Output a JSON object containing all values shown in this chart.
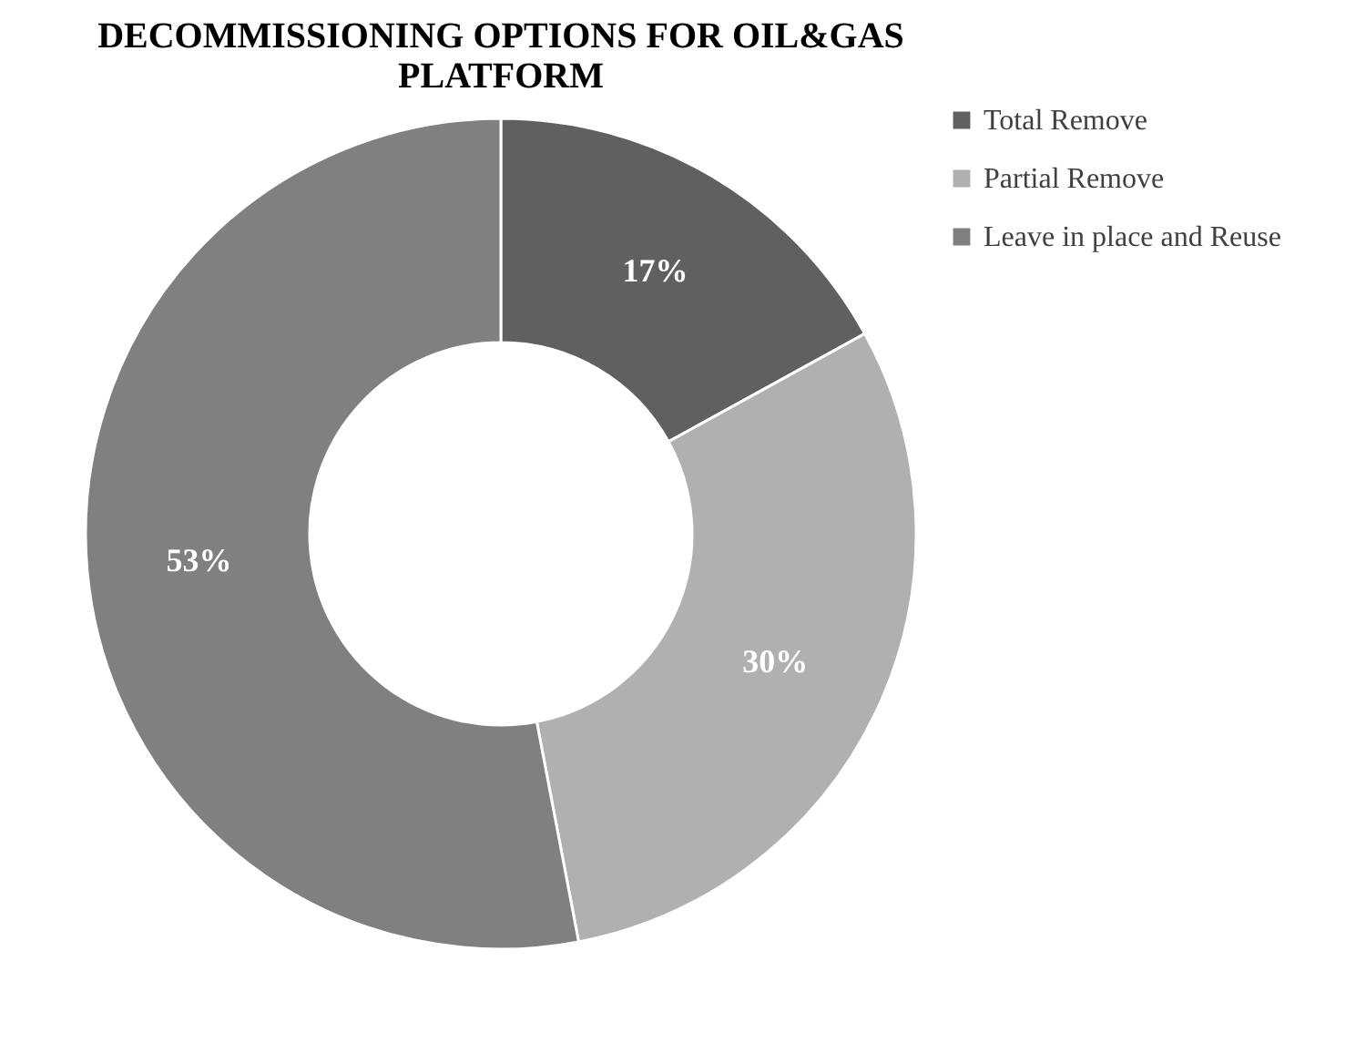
{
  "chart_data": {
    "type": "donut",
    "title": "DECOMMISSIONING OPTIONS FOR OIL&GAS PLATFORM",
    "categories": [
      "Total Remove",
      "Partial Remove",
      "Leave in place and Reuse"
    ],
    "values": [
      17,
      30,
      53
    ],
    "colors": [
      "#606060",
      "#b0b0b0",
      "#808080"
    ],
    "value_labels": [
      "17%",
      "30%",
      "53%"
    ],
    "legend": "right"
  }
}
